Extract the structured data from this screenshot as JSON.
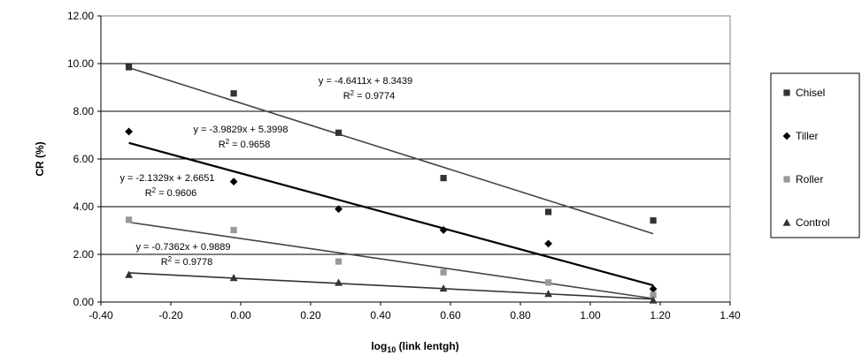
{
  "chart_data": {
    "type": "scatter",
    "title": "",
    "xlabel_base": "log",
    "xlabel_sub": "10",
    "xlabel_rest": " (link lentgh)",
    "ylabel": "CR (%)",
    "xlim": [
      -0.4,
      1.4
    ],
    "ylim": [
      0,
      12
    ],
    "x_ticks": [
      "-0.40",
      "-0.20",
      "0.00",
      "0.20",
      "0.40",
      "0.60",
      "0.80",
      "1.00",
      "1.20",
      "1.40"
    ],
    "y_ticks": [
      "0.00",
      "2.00",
      "4.00",
      "6.00",
      "8.00",
      "10.00",
      "12.00"
    ],
    "grid": "horizontal",
    "legend_position": "right",
    "series": [
      {
        "name": "Chisel",
        "marker": "square",
        "color": "#333333",
        "trend_color": "#444444",
        "x": [
          -0.32,
          -0.02,
          0.28,
          0.58,
          0.88,
          1.18
        ],
        "y": [
          9.85,
          8.75,
          7.1,
          5.2,
          3.78,
          3.42
        ],
        "trend": {
          "slope": -4.6411,
          "intercept": 8.3439
        },
        "equation": "y = -4.6411x + 8.3439",
        "r2_base": "R",
        "r2_sup": "2",
        "r2_value": " = 0.9774"
      },
      {
        "name": "Tiller",
        "marker": "diamond",
        "color": "#000000",
        "trend_color": "#000000",
        "x": [
          -0.32,
          -0.02,
          0.28,
          0.58,
          0.88,
          1.18
        ],
        "y": [
          7.15,
          5.05,
          3.9,
          3.02,
          2.45,
          0.55
        ],
        "trend": {
          "slope": -3.9829,
          "intercept": 5.3998
        },
        "equation": "y = -3.9829x + 5.3998",
        "r2_base": "R",
        "r2_sup": "2",
        "r2_value": " = 0.9658"
      },
      {
        "name": "Roller",
        "marker": "square",
        "color": "#999999",
        "trend_color": "#444444",
        "x": [
          -0.32,
          -0.02,
          0.28,
          0.58,
          0.88,
          1.18
        ],
        "y": [
          3.45,
          3.02,
          1.7,
          1.25,
          0.82,
          0.3
        ],
        "trend": {
          "slope": -2.1329,
          "intercept": 2.6651
        },
        "equation": "y = -2.1329x + 2.6651",
        "r2_base": "R",
        "r2_sup": "2",
        "r2_value": " = 0.9606"
      },
      {
        "name": "Control",
        "marker": "triangle",
        "color": "#333333",
        "trend_color": "#333333",
        "x": [
          -0.32,
          -0.02,
          0.28,
          0.58,
          0.88,
          1.18
        ],
        "y": [
          1.15,
          1.02,
          0.82,
          0.58,
          0.35,
          0.08
        ],
        "trend": {
          "slope": -0.7362,
          "intercept": 0.9889
        },
        "equation": "y = -0.7362x + 0.9889",
        "r2_base": "R",
        "r2_sup": "2",
        "r2_value": " = 0.9778"
      }
    ]
  }
}
